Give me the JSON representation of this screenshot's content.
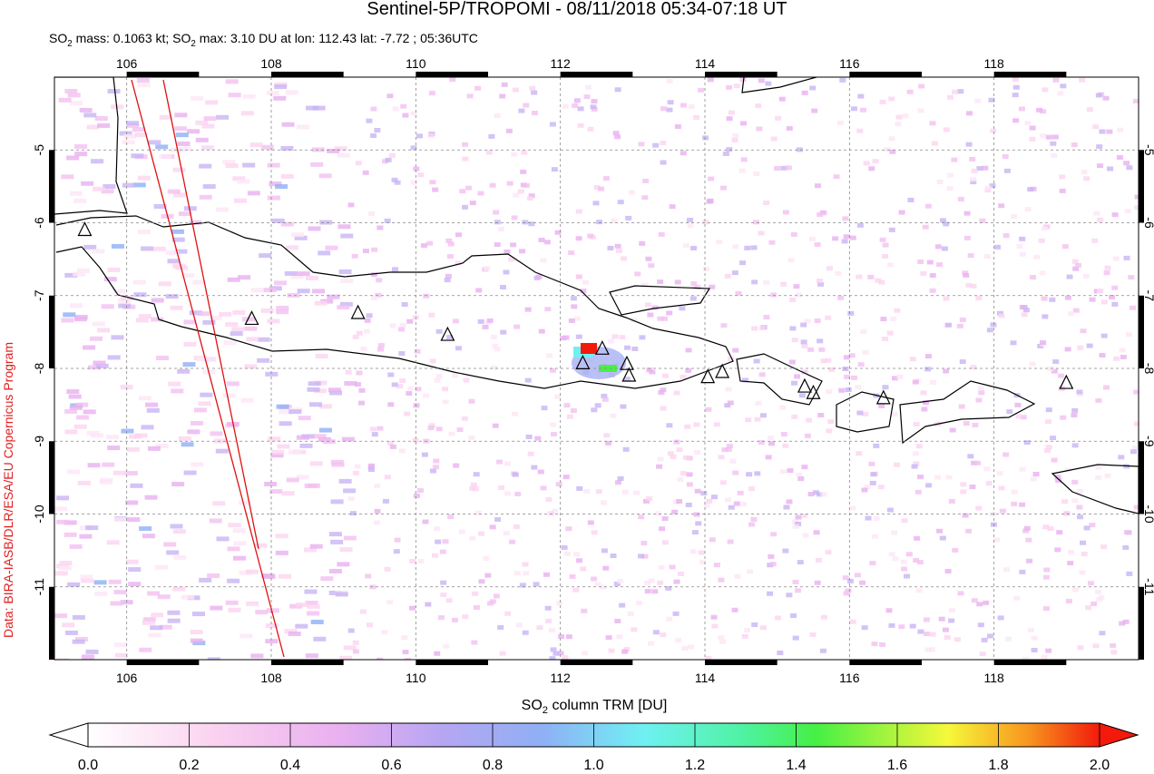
{
  "title": "Sentinel-5P/TROPOMI - 08/11/2018 05:34-07:18 UT",
  "subtitle": [
    "SO",
    "2",
    " mass: 0.1063 kt; SO",
    "2",
    " max: 3.10 DU at lon: 112.43 lat: -7.72 ; 05:36UTC"
  ],
  "credit": "Data: BIRA-IASB/DLR/ESA/EU Copernicus Program",
  "map": {
    "lon_range": [
      105,
      120
    ],
    "lat_range": [
      -12,
      -4
    ],
    "lon_ticks": [
      106,
      108,
      110,
      112,
      114,
      116,
      118
    ],
    "lat_ticks": [
      -5,
      -6,
      -7,
      -8,
      -9,
      -10,
      -11
    ],
    "volcanoes": {
      "lon": [
        105.42,
        107.73,
        109.2,
        110.44,
        112.31,
        112.58,
        112.92,
        112.95,
        114.04,
        114.24,
        115.38,
        115.5,
        116.47,
        119.0
      ],
      "lat": [
        -6.1,
        -7.32,
        -7.24,
        -7.54,
        -7.93,
        -7.73,
        -7.94,
        -8.1,
        -8.12,
        -8.05,
        -8.25,
        -8.34,
        -8.41,
        -8.2
      ]
    }
  },
  "colorbar": {
    "label": [
      "SO",
      "2",
      " column TRM [DU]"
    ],
    "range": [
      0,
      2
    ],
    "ticks": [
      {
        "value": 0,
        "label": "0.0"
      },
      {
        "value": 0.2,
        "label": "0.2"
      },
      {
        "value": 0.4,
        "label": "0.4"
      },
      {
        "value": 0.6,
        "label": "0.6"
      },
      {
        "value": 0.8,
        "label": "0.8"
      },
      {
        "value": 1,
        "label": "1.0"
      },
      {
        "value": 1.2,
        "label": "1.2"
      },
      {
        "value": 1.4,
        "label": "1.4"
      },
      {
        "value": 1.6,
        "label": "1.6"
      },
      {
        "value": 1.8,
        "label": "1.8"
      },
      {
        "value": 2,
        "label": "2.0"
      }
    ]
  }
}
